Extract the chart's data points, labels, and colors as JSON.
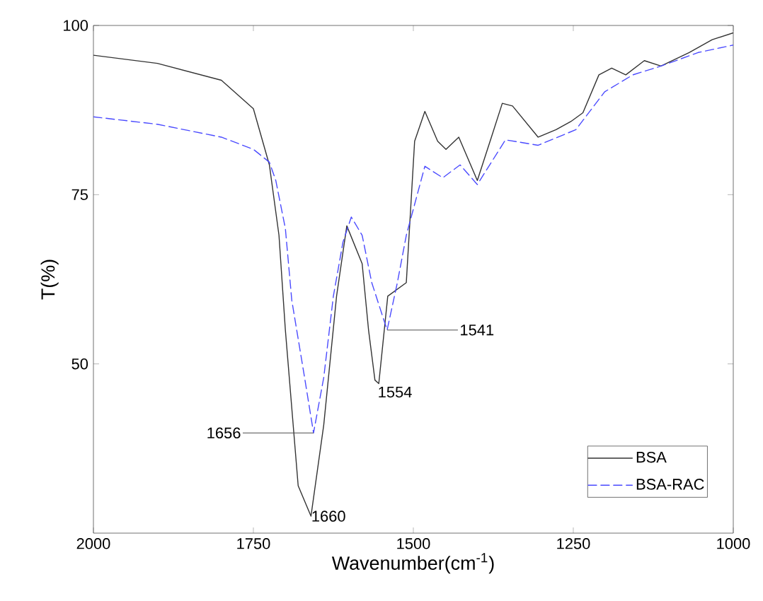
{
  "chart_data": {
    "type": "line",
    "xlabel": "Wavenumber(cm$^{-1}$)",
    "ylabel": "T(%)",
    "xlim": [
      2000,
      1000
    ],
    "ylim": [
      25,
      100
    ],
    "xticks": [
      2000,
      1750,
      1500,
      1250,
      1000
    ],
    "yticks": [
      50,
      75,
      100
    ],
    "grid": false,
    "legend": "bottom right",
    "series": [
      {
        "name": "BSA",
        "color": "#333333",
        "line_style": "solid",
        "x": [
          2000,
          1900,
          1800,
          1750,
          1725,
          1710,
          1700,
          1680,
          1660,
          1640,
          1620,
          1604,
          1580,
          1570,
          1560,
          1554,
          1540,
          1511,
          1498,
          1482,
          1462,
          1449,
          1429,
          1400,
          1378,
          1361,
          1345,
          1305,
          1277,
          1254,
          1235,
          1210,
          1190,
          1168,
          1139,
          1113,
          1069,
          1033,
          1000
        ],
        "values": [
          95.6,
          94.4,
          91.9,
          87.7,
          79.4,
          69,
          55,
          32,
          27.5,
          41,
          60,
          70.4,
          64.8,
          55,
          47.6,
          47.1,
          60,
          62,
          82.9,
          87.3,
          82.9,
          81.7,
          83.5,
          77.1,
          83.5,
          88.5,
          88.1,
          83.5,
          84.6,
          85.8,
          87.1,
          92.7,
          93.7,
          92.7,
          94.8,
          94,
          96,
          97.9,
          98.9
        ]
      },
      {
        "name": "BSA-RAC",
        "color": "#4a4aff",
        "line_style": "dashed",
        "x": [
          2000,
          1900,
          1800,
          1750,
          1725,
          1715,
          1700,
          1690,
          1670,
          1656,
          1640,
          1625,
          1610,
          1597,
          1580,
          1565,
          1541,
          1525,
          1511,
          1482,
          1454,
          1427,
          1400,
          1356,
          1305,
          1246,
          1201,
          1157,
          1113,
          1055,
          1000
        ],
        "values": [
          86.5,
          85.4,
          83.5,
          81.7,
          79.8,
          77.1,
          70,
          59.4,
          48,
          39.8,
          48,
          60,
          68,
          71.7,
          69,
          62,
          55,
          62,
          69,
          79.2,
          77.5,
          79.4,
          76.5,
          83.1,
          82.3,
          84.6,
          90.2,
          92.7,
          94,
          96,
          97.1
        ]
      }
    ],
    "annotations": [
      {
        "text": "1656",
        "x": 1656,
        "y": 39.8
      },
      {
        "text": "1660",
        "x": 1660,
        "y": 27.5
      },
      {
        "text": "1554",
        "x": 1554,
        "y": 47.1
      },
      {
        "text": "1541",
        "x": 1541,
        "y": 55
      }
    ]
  }
}
